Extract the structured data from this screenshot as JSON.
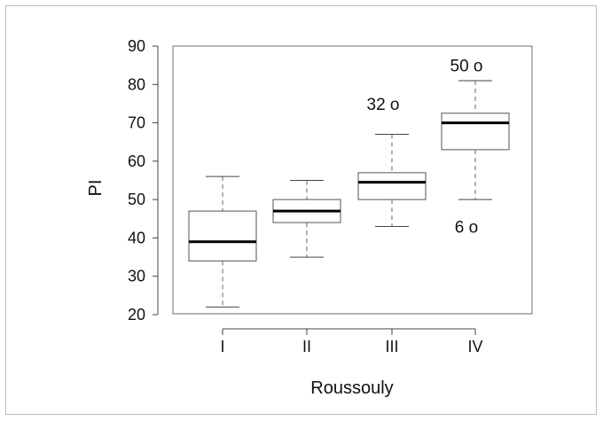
{
  "chart_data": {
    "type": "box",
    "title": "",
    "xlabel": "Roussouly",
    "ylabel": "PI",
    "ylim": [
      20,
      90
    ],
    "yticks": [
      20,
      30,
      40,
      50,
      60,
      70,
      80,
      90
    ],
    "categories": [
      "I",
      "II",
      "III",
      "IV"
    ],
    "boxes": [
      {
        "category": "I",
        "whisker_low": 22,
        "q1": 34,
        "median": 39,
        "q3": 47,
        "whisker_high": 56
      },
      {
        "category": "II",
        "whisker_low": 35,
        "q1": 44,
        "median": 47,
        "q3": 50,
        "whisker_high": 55
      },
      {
        "category": "III",
        "whisker_low": 43,
        "q1": 50,
        "median": 54.5,
        "q3": 57,
        "whisker_high": 67
      },
      {
        "category": "IV",
        "whisker_low": 50,
        "q1": 63,
        "median": 70,
        "q3": 72.5,
        "whisker_high": 81
      }
    ],
    "annotations": [
      {
        "text": "32 o",
        "category": "III",
        "y": 75
      },
      {
        "text": "50 o",
        "category": "IV",
        "y": 85
      },
      {
        "text": "6 o",
        "category": "IV",
        "y": 43
      }
    ]
  }
}
